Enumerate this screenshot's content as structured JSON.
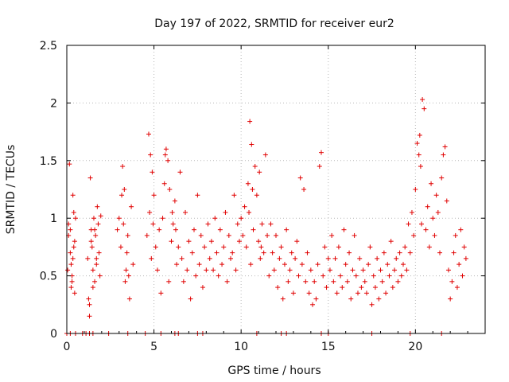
{
  "chart_data": {
    "type": "scatter",
    "title": "Day 197 of 2022, SRMTID for receiver eur2",
    "xlabel": "GPS time / hours",
    "ylabel": "SRMTID / TECUs",
    "xlim": [
      0,
      24
    ],
    "ylim": [
      0,
      2.5
    ],
    "xticks": [
      0,
      5,
      10,
      15,
      20
    ],
    "yticks": [
      0,
      0.5,
      1,
      1.5,
      2,
      2.5
    ],
    "xtick_labels": [
      "0",
      "5",
      "10",
      "15",
      "20"
    ],
    "ytick_labels": [
      "0",
      "0.5",
      "1",
      "1.5",
      "2",
      "2.5"
    ],
    "grid": true,
    "marker": "+",
    "color": "#e00000",
    "series": [
      {
        "name": "SRMTID",
        "x": [
          0.05,
          0.1,
          0.15,
          0.2,
          0.25,
          0.3,
          0.35,
          0.4,
          0.45,
          0.5,
          0.1,
          0.2,
          0.3,
          0.4,
          0.35,
          0.25,
          0.45,
          1.2,
          1.25,
          1.3,
          1.35,
          1.4,
          1.45,
          1.5,
          1.55,
          1.6,
          1.65,
          1.7,
          1.75,
          1.8,
          1.85,
          1.9,
          1.95,
          1.3,
          1.4,
          1.5,
          1.6,
          1.7,
          2.9,
          3.0,
          3.1,
          3.2,
          3.3,
          3.4,
          3.5,
          3.6,
          3.7,
          3.8,
          3.15,
          3.25,
          3.35,
          3.45,
          3.55,
          4.6,
          4.7,
          4.8,
          4.9,
          5.0,
          5.1,
          5.2,
          5.3,
          5.4,
          4.75,
          4.85,
          4.95,
          5.5,
          5.6,
          5.7,
          5.8,
          5.9,
          6.0,
          6.1,
          6.2,
          6.3,
          6.4,
          6.5,
          5.65,
          5.85,
          6.05,
          6.25,
          6.6,
          6.7,
          6.8,
          6.9,
          7.0,
          7.1,
          7.2,
          7.3,
          7.4,
          7.5,
          7.6,
          7.7,
          7.8,
          7.9,
          8.0,
          8.1,
          8.2,
          8.3,
          8.4,
          8.5,
          8.6,
          8.7,
          8.8,
          8.9,
          9.0,
          9.1,
          9.2,
          9.3,
          9.4,
          9.5,
          9.6,
          9.7,
          9.8,
          9.9,
          10.0,
          10.1,
          10.2,
          10.3,
          10.4,
          10.5,
          10.6,
          10.7,
          10.8,
          10.9,
          11.0,
          11.1,
          11.2,
          11.3,
          11.4,
          11.5,
          10.45,
          10.55,
          10.65,
          11.05,
          11.15,
          11.6,
          11.7,
          11.8,
          11.9,
          12.0,
          12.1,
          12.2,
          12.3,
          12.4,
          12.5,
          12.6,
          12.7,
          12.8,
          12.9,
          13.0,
          13.1,
          13.2,
          13.3,
          13.4,
          13.5,
          13.6,
          13.7,
          13.8,
          13.9,
          14.0,
          14.1,
          14.2,
          14.3,
          14.4,
          14.5,
          14.6,
          14.7,
          14.8,
          14.9,
          15.0,
          15.1,
          15.2,
          15.3,
          15.4,
          15.5,
          15.6,
          15.7,
          15.8,
          15.9,
          16.0,
          16.1,
          16.2,
          16.3,
          16.4,
          16.5,
          16.6,
          16.7,
          16.8,
          16.9,
          17.0,
          17.1,
          17.2,
          17.3,
          17.4,
          17.5,
          17.6,
          17.7,
          17.8,
          17.9,
          18.0,
          18.1,
          18.2,
          18.3,
          18.4,
          18.5,
          18.6,
          18.7,
          18.8,
          18.9,
          19.0,
          19.1,
          19.2,
          19.3,
          19.4,
          19.5,
          19.6,
          19.7,
          19.8,
          19.9,
          20.0,
          20.1,
          20.2,
          20.3,
          20.4,
          20.5,
          20.6,
          20.7,
          20.8,
          20.9,
          21.0,
          21.1,
          21.2,
          21.3,
          21.4,
          21.5,
          21.6,
          21.7,
          21.8,
          20.25,
          20.35,
          21.9,
          22.0,
          22.1,
          22.2,
          22.3,
          22.4,
          22.5,
          22.6,
          22.7,
          22.8,
          22.9,
          0.0,
          0.2,
          0.5,
          0.9,
          1.1,
          1.3,
          1.5,
          2.4,
          3.5,
          4.5,
          5.4,
          6.2,
          6.4,
          7.5,
          7.8,
          10.9,
          12.3,
          12.6,
          14.6,
          15.0,
          17.5,
          19.7,
          21.5
        ],
        "y": [
          0.55,
          0.95,
          1.47,
          0.9,
          0.6,
          0.45,
          1.2,
          0.75,
          0.35,
          1.0,
          0.85,
          0.7,
          0.5,
          1.05,
          0.65,
          0.4,
          0.8,
          0.65,
          0.3,
          0.15,
          1.35,
          0.9,
          0.75,
          0.55,
          1.0,
          0.45,
          0.85,
          0.6,
          1.1,
          0.95,
          0.7,
          0.5,
          1.02,
          0.25,
          0.8,
          0.4,
          0.9,
          0.65,
          0.9,
          1.0,
          0.75,
          1.45,
          1.25,
          0.55,
          0.85,
          0.3,
          1.1,
          0.6,
          1.2,
          0.95,
          0.45,
          0.7,
          0.5,
          0.85,
          1.73,
          1.55,
          1.4,
          1.2,
          0.75,
          0.55,
          0.9,
          0.35,
          1.05,
          0.65,
          0.95,
          1.0,
          1.3,
          1.6,
          1.5,
          1.25,
          0.8,
          0.95,
          1.15,
          0.6,
          0.75,
          1.4,
          1.55,
          0.45,
          1.05,
          0.9,
          0.65,
          0.45,
          1.05,
          0.55,
          0.8,
          0.3,
          0.7,
          0.9,
          0.5,
          1.2,
          0.6,
          0.85,
          0.4,
          0.75,
          0.55,
          0.95,
          0.65,
          0.8,
          0.55,
          1.0,
          0.7,
          0.5,
          0.9,
          0.6,
          0.75,
          1.05,
          0.45,
          0.85,
          0.65,
          0.7,
          1.2,
          0.55,
          0.95,
          0.8,
          1.0,
          0.85,
          1.1,
          0.75,
          1.3,
          1.84,
          1.64,
          0.9,
          1.45,
          1.2,
          0.8,
          0.65,
          0.95,
          0.7,
          1.55,
          0.85,
          1.05,
          0.6,
          1.25,
          1.4,
          0.75,
          0.5,
          0.95,
          0.7,
          0.55,
          0.85,
          0.4,
          0.65,
          0.75,
          0.3,
          0.6,
          0.9,
          0.45,
          0.55,
          0.7,
          0.35,
          0.65,
          0.8,
          0.5,
          1.35,
          0.6,
          1.25,
          0.45,
          0.7,
          0.35,
          0.55,
          0.25,
          0.45,
          0.3,
          0.6,
          1.45,
          1.57,
          0.5,
          0.75,
          0.4,
          0.65,
          0.55,
          0.85,
          0.45,
          0.65,
          0.35,
          0.75,
          0.5,
          0.4,
          0.9,
          0.6,
          0.45,
          0.7,
          0.3,
          0.55,
          0.85,
          0.5,
          0.35,
          0.65,
          0.4,
          0.55,
          0.45,
          0.35,
          0.6,
          0.75,
          0.25,
          0.5,
          0.4,
          0.65,
          0.3,
          0.55,
          0.45,
          0.7,
          0.35,
          0.6,
          0.5,
          0.8,
          0.4,
          0.55,
          0.65,
          0.45,
          0.7,
          0.5,
          0.6,
          0.75,
          0.55,
          0.95,
          0.7,
          1.05,
          0.85,
          1.25,
          1.65,
          1.55,
          1.45,
          2.03,
          1.95,
          0.9,
          1.1,
          0.75,
          1.3,
          1.0,
          0.85,
          1.2,
          1.05,
          0.7,
          1.35,
          1.55,
          1.62,
          1.15,
          1.72,
          0.95,
          0.55,
          0.3,
          0.45,
          0.7,
          0.85,
          0.4,
          0.6,
          0.9,
          0.5,
          0.75,
          0.65,
          0.0,
          0.0,
          0.0,
          0.0,
          0.0,
          0.0,
          0.0,
          0.0,
          0.0,
          0.0,
          0.0,
          0.0,
          0.0,
          0.0,
          0.0,
          0.0,
          0.0,
          0.0,
          0.0,
          0.0,
          0.0,
          0.0,
          0.0
        ]
      }
    ]
  }
}
